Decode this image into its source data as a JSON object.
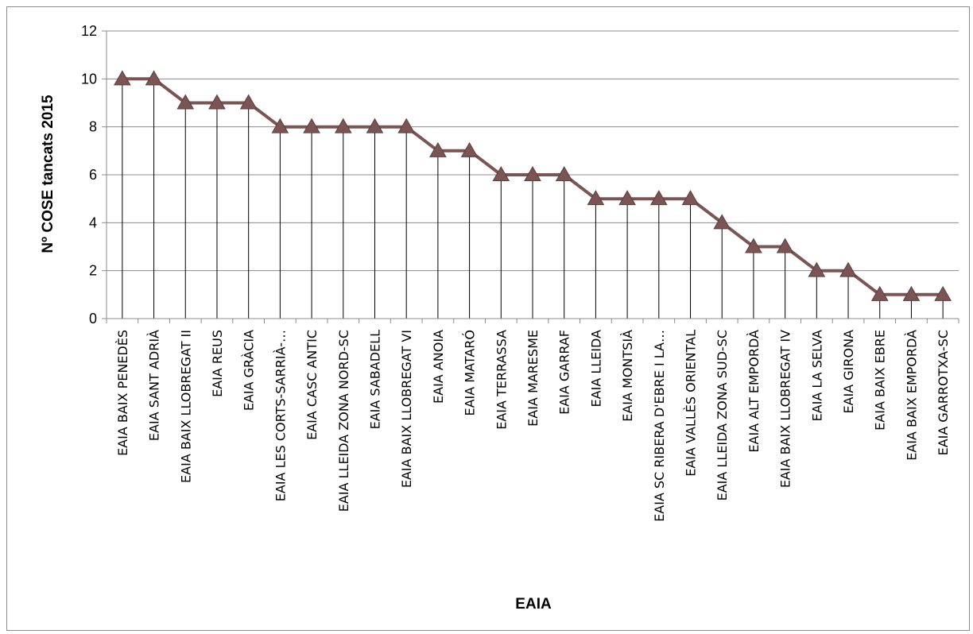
{
  "chart_data": {
    "type": "line",
    "title": "",
    "xlabel": "EAIA",
    "ylabel": "Nº COSE tancats 2015",
    "ylim": [
      0,
      12
    ],
    "yticks": [
      "0",
      "2",
      "4",
      "6",
      "8",
      "10",
      "12"
    ],
    "grid": true,
    "legend": "none",
    "categories": [
      "EAIA BAIX PENEDÈS",
      "EAIA SANT ADRIÀ",
      "EAIA BAIX LLOBREGAT II",
      "EAIA REUS",
      "EAIA GRÀCIA",
      "EAIA LES CORTS-SARRIÀ-…",
      "EAIA CASC ANTIC",
      "EAIA LLEIDA ZONA NORD-SC",
      "EAIA SABADELL",
      "EAIA BAIX LLOBREGAT VI",
      "EAIA ANOIA",
      "EAIA MATARÓ",
      "EAIA TERRASSA",
      "EAIA MARESME",
      "EAIA GARRAF",
      "EAIA LLEIDA",
      "EAIA MONTSIÀ",
      "EAIA SC RIBERA D'EBRE I LA…",
      "EAIA VALLÈS ORIENTAL",
      "EAIA LLEIDA ZONA SUD-SC",
      "EAIA ALT EMPORDÀ",
      "EAIA BAIX LLOBREGAT IV",
      "EAIA LA SELVA",
      "EAIA GIRONA",
      "EAIA BAIX EBRE",
      "EAIA BAIX EMPORDÀ",
      "EAIA GARROTXA-SC"
    ],
    "series": [
      {
        "values": [
          10,
          10,
          9,
          9,
          9,
          8,
          8,
          8,
          8,
          8,
          7,
          7,
          6,
          6,
          6,
          5,
          5,
          5,
          5,
          4,
          3,
          3,
          2,
          2,
          1,
          1,
          1
        ],
        "color": "#7b5454",
        "marker": "triangle",
        "drop_lines": true
      }
    ]
  }
}
